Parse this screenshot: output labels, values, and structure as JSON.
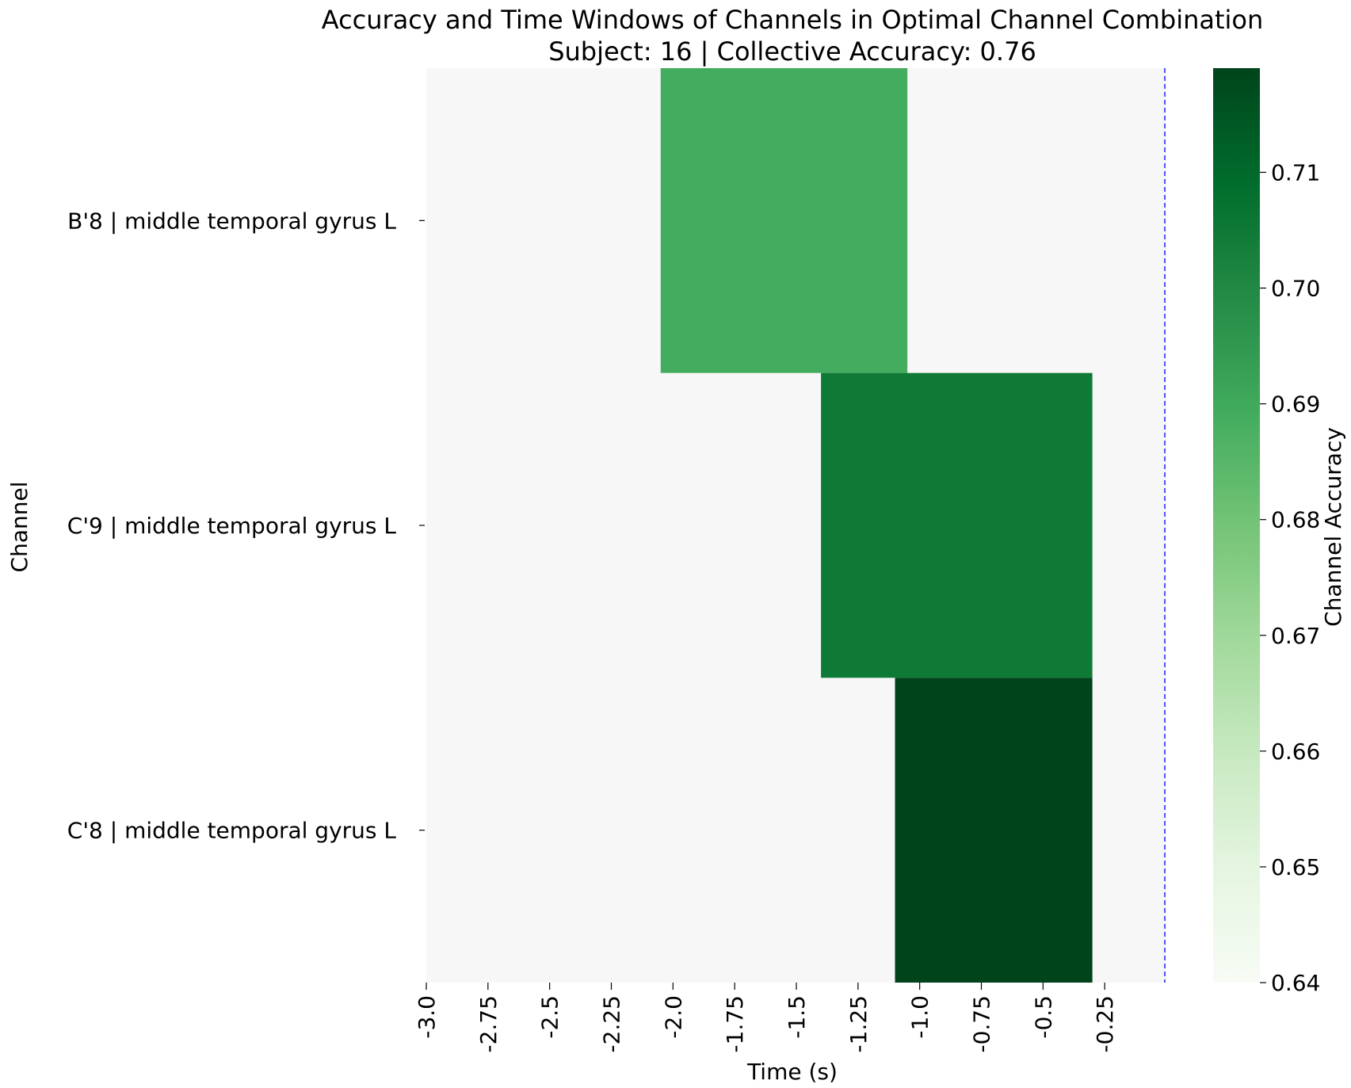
{
  "chart_data": {
    "type": "heatmap",
    "title": "Accuracy and Time Windows of Channels in Optimal Channel Combination",
    "subtitle": "Subject: 16 | Collective Accuracy: 0.76",
    "xlabel": "Time (s)",
    "ylabel": "Channel",
    "xlim": [
      -3.0,
      0.0
    ],
    "x_ticks": [
      -3.0,
      -2.75,
      -2.5,
      -2.25,
      -2.0,
      -1.75,
      -1.5,
      -1.25,
      -1.0,
      -0.75,
      -0.5,
      -0.25
    ],
    "x_tick_labels": [
      "-3.0",
      "-2.75",
      "-2.5",
      "-2.25",
      "-2.0",
      "-1.75",
      "-1.5",
      "-1.25",
      "-1.0",
      "-0.75",
      "-0.5",
      "-0.25"
    ],
    "channels": [
      {
        "label": "B'8 | middle temporal gyrus L",
        "start": -2.05,
        "end": -1.05,
        "accuracy": 0.689
      },
      {
        "label": "C'9 | middle temporal gyrus L",
        "start": -1.4,
        "end": -0.3,
        "accuracy": 0.705
      },
      {
        "label": "C'8 | middle temporal gyrus L",
        "start": -1.1,
        "end": -0.3,
        "accuracy": 0.719
      }
    ],
    "marker_line": {
      "x": 0.0,
      "color": "#0000ff",
      "style": "dashed"
    },
    "background_color": "#f7f7f7",
    "colorbar": {
      "label": "Channel Accuracy",
      "min": 0.64,
      "max": 0.719,
      "ticks": [
        0.64,
        0.65,
        0.66,
        0.67,
        0.68,
        0.69,
        0.7,
        0.71
      ],
      "tick_labels": [
        "0.64",
        "0.65",
        "0.66",
        "0.67",
        "0.68",
        "0.69",
        "0.70",
        "0.71"
      ],
      "colors": [
        "#f7fcf5",
        "#e5f5e0",
        "#c7e9c0",
        "#a1d99b",
        "#74c476",
        "#41ab5d",
        "#238b45",
        "#006d2c",
        "#00441b"
      ]
    },
    "grid": false
  }
}
